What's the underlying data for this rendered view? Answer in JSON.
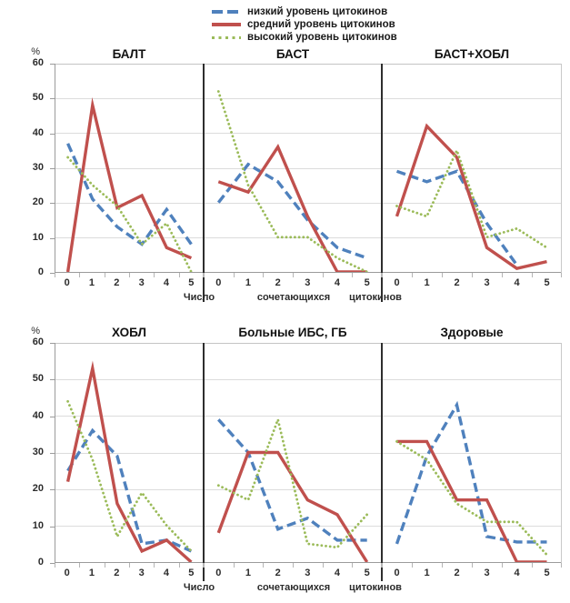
{
  "legend": {
    "items": [
      {
        "label": "низкий уровень цитокинов",
        "color": "#4f81bd",
        "style": "dashed"
      },
      {
        "label": "средний уровень цитокинов",
        "color": "#c0504d",
        "style": "solid"
      },
      {
        "label": "высокий уровень цитокинов",
        "color": "#9bbb59",
        "style": "dotted"
      }
    ]
  },
  "axis": {
    "percent_label": "%",
    "y_ticks": [
      "60",
      "50",
      "40",
      "30",
      "20",
      "10",
      "0"
    ],
    "x_ticks": [
      "0",
      "1",
      "2",
      "3",
      "4",
      "5"
    ],
    "x_title_words": [
      "Число",
      "сочетающихся",
      "цитокинов"
    ]
  },
  "chart_data": [
    {
      "type": "line",
      "title": "БАЛТ",
      "x": [
        0,
        1,
        2,
        3,
        4,
        5
      ],
      "ylim": [
        0,
        60
      ],
      "grid": true,
      "series": [
        {
          "name": "низкий уровень цитокинов",
          "values": [
            37,
            21,
            13,
            8,
            18,
            8
          ]
        },
        {
          "name": "средний уровень цитокинов",
          "values": [
            0,
            48,
            18.5,
            22,
            7,
            4
          ]
        },
        {
          "name": "высокий уровень цитокинов",
          "values": [
            33,
            25,
            19,
            8,
            14,
            0
          ]
        }
      ]
    },
    {
      "type": "line",
      "title": "БАСТ",
      "x": [
        0,
        1,
        2,
        3,
        4,
        5
      ],
      "ylim": [
        0,
        60
      ],
      "grid": true,
      "series": [
        {
          "name": "низкий уровень цитокинов",
          "values": [
            20,
            31,
            26,
            15,
            7,
            4
          ]
        },
        {
          "name": "средний уровень цитокинов",
          "values": [
            26,
            23,
            36,
            16,
            0,
            0
          ]
        },
        {
          "name": "высокий уровень цитокинов",
          "values": [
            52,
            25,
            10,
            10,
            4,
            0
          ]
        }
      ]
    },
    {
      "type": "line",
      "title": "БАСТ+ХОБЛ",
      "x": [
        0,
        1,
        2,
        3,
        4,
        5
      ],
      "ylim": [
        0,
        60
      ],
      "grid": true,
      "series": [
        {
          "name": "низкий уровень цитокинов",
          "values": [
            29,
            26,
            29,
            14,
            2,
            null
          ]
        },
        {
          "name": "средний уровень цитокинов",
          "values": [
            16,
            42,
            33,
            7,
            1,
            3
          ]
        },
        {
          "name": "высокий уровень цитокинов",
          "values": [
            19,
            16,
            35,
            10,
            12.5,
            7
          ]
        }
      ]
    },
    {
      "type": "line",
      "title": "ХОБЛ",
      "x": [
        0,
        1,
        2,
        3,
        4,
        5
      ],
      "ylim": [
        0,
        60
      ],
      "grid": true,
      "series": [
        {
          "name": "низкий уровень цитокинов",
          "values": [
            25,
            36,
            29,
            5,
            6,
            3
          ]
        },
        {
          "name": "средний уровень цитокинов",
          "values": [
            22,
            53,
            16,
            3,
            6,
            0
          ]
        },
        {
          "name": "высокий уровень цитокинов",
          "values": [
            44,
            28,
            7,
            19,
            10,
            3
          ]
        }
      ]
    },
    {
      "type": "line",
      "title": "Больные ИБС, ГБ",
      "x": [
        0,
        1,
        2,
        3,
        4,
        5
      ],
      "ylim": [
        0,
        60
      ],
      "grid": true,
      "series": [
        {
          "name": "низкий уровень цитокинов",
          "values": [
            39,
            30,
            9,
            12,
            6,
            6
          ]
        },
        {
          "name": "средний уровень цитокинов",
          "values": [
            8,
            30,
            30,
            17,
            13,
            0
          ]
        },
        {
          "name": "высокий уровень цитокинов",
          "values": [
            21,
            17,
            39,
            5,
            4,
            13
          ]
        }
      ]
    },
    {
      "type": "line",
      "title": "Здоровые",
      "x": [
        0,
        1,
        2,
        3,
        4,
        5
      ],
      "ylim": [
        0,
        60
      ],
      "grid": true,
      "series": [
        {
          "name": "низкий уровень цитокинов",
          "values": [
            5,
            29,
            43,
            7,
            5.5,
            5.5
          ]
        },
        {
          "name": "средний уровень цитокинов",
          "values": [
            33,
            33,
            17,
            17,
            0,
            0
          ]
        },
        {
          "name": "высокий уровень цитокинов",
          "values": [
            33,
            28,
            16,
            11,
            11,
            2
          ]
        }
      ]
    }
  ]
}
